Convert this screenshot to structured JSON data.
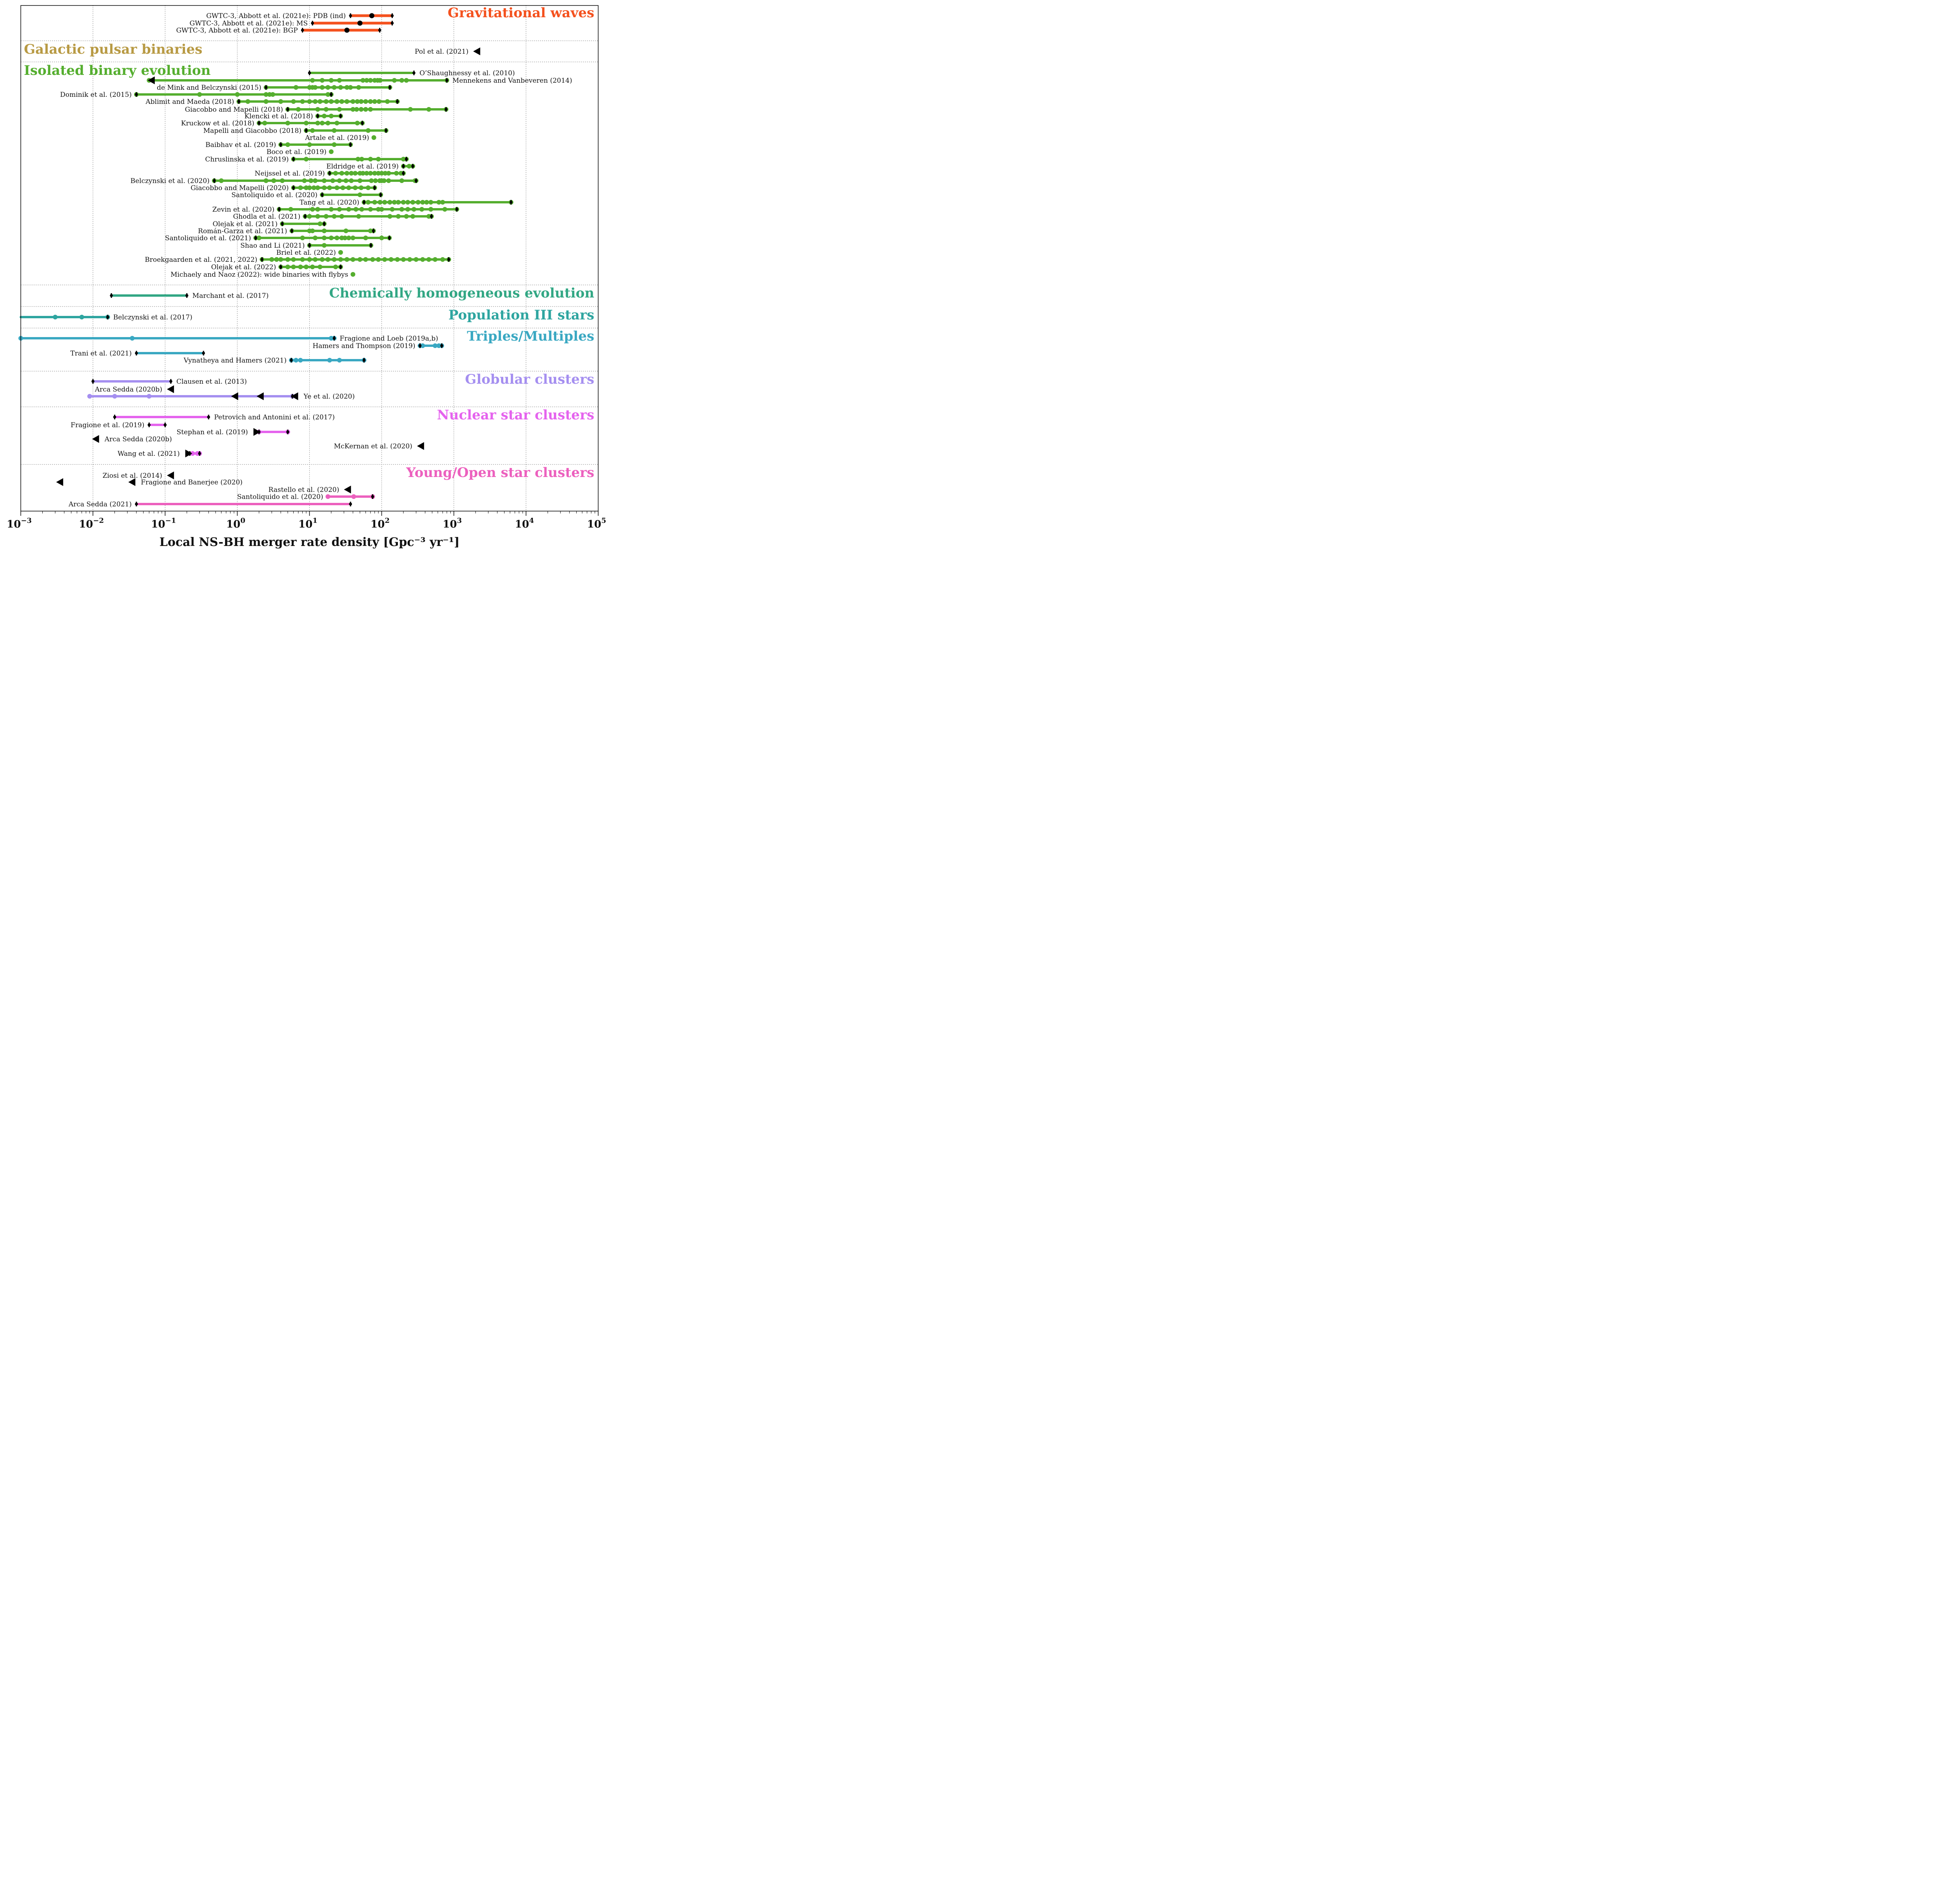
{
  "chart_data": {
    "type": "scatter",
    "xscale": "log",
    "xlim": [
      0.001,
      100000
    ],
    "xlabel": "Local NS-BH merger rate density  [Gpc⁻³ yr⁻¹]",
    "x_ticks": [
      {
        "v": 0.001,
        "base": "10",
        "exp": "−3"
      },
      {
        "v": 0.01,
        "base": "10",
        "exp": "−2"
      },
      {
        "v": 0.1,
        "base": "10",
        "exp": "−1"
      },
      {
        "v": 1,
        "base": "10",
        "exp": "0"
      },
      {
        "v": 10,
        "base": "10",
        "exp": "1"
      },
      {
        "v": 100,
        "base": "10",
        "exp": "2"
      },
      {
        "v": 1000,
        "base": "10",
        "exp": "3"
      },
      {
        "v": 10000,
        "base": "10",
        "exp": "4"
      },
      {
        "v": 100000,
        "base": "10",
        "exp": "5"
      }
    ],
    "grid": true,
    "categories": [
      {
        "name": "Gravitational waves",
        "color": "#f4511e",
        "rows": [
          {
            "label": "GWTC-3, Abbott et al. (2021e): PDB (ind)",
            "label_side": "left",
            "range": [
              37,
              140
            ],
            "points": [
              73
            ],
            "point_color": "#000000",
            "caps": "both"
          },
          {
            "label": "GWTC-3, Abbott et al. (2021e): MS",
            "label_side": "left",
            "range": [
              11,
              140
            ],
            "points": [
              50
            ],
            "point_color": "#000000",
            "caps": "both"
          },
          {
            "label": "GWTC-3, Abbott et al. (2021e): BGP",
            "label_side": "left",
            "range": [
              8,
              94
            ],
            "points": [
              33
            ],
            "point_color": "#000000",
            "caps": "both"
          }
        ]
      },
      {
        "name": "Galactic pulsar binaries",
        "color": "#b89a44",
        "rows": [
          {
            "label": "Pol et al. (2021)",
            "label_side": "left",
            "upper_limit": 2100
          }
        ]
      },
      {
        "name": "Isolated binary evolution",
        "color": "#55ae2f",
        "rows": [
          {
            "label": "O’Shaughnessy et al. (2010)",
            "label_side": "right",
            "range": [
              10,
              280
            ],
            "caps": "both"
          },
          {
            "label": "Mennekens and Vanbeveren (2014)",
            "label_side": "right",
            "range": [
              0.06,
              800
            ],
            "points": [
              0.06,
              11,
              15,
              20,
              26,
              55,
              62,
              70,
              80,
              88,
              95,
              150,
              190,
              220,
              800
            ],
            "lower_limit": 0.065,
            "caps": "right"
          },
          {
            "label": "de Mink and Belczynski (2015)",
            "label_side": "left",
            "range": [
              2.5,
              130
            ],
            "points": [
              2.5,
              6.5,
              10,
              11,
              12,
              15,
              18,
              22,
              27,
              33,
              37,
              48,
              130
            ],
            "caps": "both"
          },
          {
            "label": "Dominik et al. (2015)",
            "label_side": "left",
            "range": [
              0.04,
              20
            ],
            "points": [
              0.04,
              0.3,
              1.0,
              2.5,
              2.8,
              3.1,
              18,
              20
            ],
            "caps": "both"
          },
          {
            "label": "Ablimit and Maeda (2018)",
            "label_side": "left",
            "range": [
              1.05,
              165
            ],
            "points": [
              1.05,
              1.4,
              2.5,
              4,
              6,
              8,
              10,
              12,
              14,
              17,
              20,
              24,
              28,
              33,
              40,
              46,
              52,
              60,
              70,
              80,
              92,
              120,
              165
            ],
            "caps": "both"
          },
          {
            "label": "Giacobbo and Mapelli (2018)",
            "label_side": "left",
            "range": [
              5,
              780
            ],
            "points": [
              5,
              7,
              13,
              17,
              26,
              40,
              45,
              52,
              60,
              70,
              250,
              450,
              780
            ],
            "caps": "both"
          },
          {
            "label": "Klencki et al. (2018)",
            "label_side": "left",
            "range": [
              13,
              27
            ],
            "points": [
              13,
              16,
              20,
              27
            ],
            "caps": "both"
          },
          {
            "label": "Kruckow et al. (2018)",
            "label_side": "left",
            "range": [
              2,
              54
            ],
            "points": [
              2,
              2.4,
              5,
              9,
              13,
              15,
              18,
              24,
              46,
              54
            ],
            "caps": "both"
          },
          {
            "label": "Mapelli and Giacobbo (2018)",
            "label_side": "left",
            "range": [
              9,
              115
            ],
            "points": [
              9,
              11,
              22,
              65,
              115
            ],
            "caps": "both"
          },
          {
            "label": "Artale et al. (2019)",
            "label_side": "left",
            "points": [
              78
            ]
          },
          {
            "label": "Baibhav et al. (2019)",
            "label_side": "left",
            "range": [
              4,
              37
            ],
            "points": [
              4,
              5,
              10,
              22,
              37
            ],
            "caps": "both"
          },
          {
            "label": "Boco et al. (2019)",
            "label_side": "left",
            "points": [
              20
            ]
          },
          {
            "label": "Chruslinska et al. (2019)",
            "label_side": "left",
            "range": [
              6,
              220
            ],
            "points": [
              6,
              9,
              47,
              53,
              70,
              90,
              200,
              220
            ],
            "caps": "both"
          },
          {
            "label": "Eldridge et al. (2019)",
            "label_side": "left",
            "range": [
              200,
              270
            ],
            "points": [
              200,
              240,
              270
            ],
            "caps": "both"
          },
          {
            "label": "Neijssel et al. (2019)",
            "label_side": "left",
            "range": [
              19,
              200
            ],
            "points": [
              19,
              23,
              28,
              33,
              38,
              43,
              50,
              55,
              62,
              70,
              80,
              90,
              100,
              112,
              125,
              160,
              185,
              200
            ],
            "caps": "both"
          },
          {
            "label": "Belczynski et al. (2020)",
            "label_side": "left",
            "range": [
              0.48,
              300
            ],
            "points": [
              0.48,
              0.6,
              2.5,
              3.2,
              4.2,
              8.5,
              10.5,
              12,
              16,
              21,
              26,
              32,
              38,
              50,
              72,
              82,
              94,
              100,
              108,
              125,
              190,
              290,
              300
            ],
            "caps": "both"
          },
          {
            "label": "Giacobbo and Mapelli (2020)",
            "label_side": "left",
            "range": [
              6,
              80
            ],
            "points": [
              6,
              7.5,
              9,
              10,
              11.5,
              13,
              16,
              19,
              24,
              29,
              35,
              43,
              52,
              65,
              80
            ],
            "caps": "both"
          },
          {
            "label": "Santoliquido et al. (2020)",
            "label_side": "left",
            "range": [
              15,
              97
            ],
            "points": [
              15,
              50,
              97
            ],
            "caps": "both"
          },
          {
            "label": "Tang et al. (2020)",
            "label_side": "left",
            "range": [
              57,
              6200
            ],
            "points": [
              57,
              65,
              80,
              95,
              110,
              130,
              150,
              170,
              200,
              230,
              270,
              320,
              370,
              420,
              480,
              620,
              700,
              6200
            ],
            "caps": "both"
          },
          {
            "label": "Zevin et al. (2020)",
            "label_side": "left",
            "range": [
              3.8,
              1100
            ],
            "points": [
              3.8,
              5.5,
              11,
              13,
              20,
              26,
              35,
              44,
              53,
              70,
              90,
              100,
              140,
              190,
              230,
              280,
              360,
              480,
              750,
              1100
            ],
            "caps": "both"
          },
          {
            "label": "Ghodla et al. (2021)",
            "label_side": "left",
            "range": [
              8.7,
              490
            ],
            "points": [
              8.7,
              10,
              13,
              17,
              22,
              28,
              48,
              130,
              170,
              220,
              270,
              450,
              490
            ],
            "caps": "both"
          },
          {
            "label": "Olejak et al. (2021)",
            "label_side": "left",
            "range": [
              4.2,
              16
            ],
            "points": [
              4.2,
              14,
              16
            ],
            "caps": "both"
          },
          {
            "label": "Román-Garza et al. (2021)",
            "label_side": "left",
            "range": [
              5.7,
              77
            ],
            "points": [
              5.7,
              10,
              11,
              16,
              32,
              70,
              77
            ],
            "caps": "both"
          },
          {
            "label": "Santoliquido et al. (2021)",
            "label_side": "left",
            "range": [
              1.8,
              128
            ],
            "points": [
              1.8,
              2,
              8,
              12,
              16,
              20,
              24,
              28,
              31,
              35,
              40,
              60,
              100,
              128
            ],
            "caps": "both"
          },
          {
            "label": "Shao and Li (2021)",
            "label_side": "left",
            "range": [
              10,
              71
            ],
            "points": [
              10,
              16,
              71
            ],
            "caps": "both"
          },
          {
            "label": "Briel et al. (2022)",
            "label_side": "left",
            "points": [
              27
            ]
          },
          {
            "label": "Broekgaarden et al. (2021, 2022)",
            "label_side": "left",
            "range": [
              2.2,
              850
            ],
            "points": [
              2.2,
              3,
              3.5,
              4,
              5,
              6,
              8,
              10,
              12,
              15,
              18,
              22,
              27,
              33,
              40,
              50,
              60,
              75,
              90,
              110,
              135,
              165,
              200,
              245,
              300,
              370,
              450,
              550,
              700,
              850
            ],
            "caps": "both"
          },
          {
            "label": "Olejak et al. (2022)",
            "label_side": "left",
            "range": [
              4,
              27
            ],
            "points": [
              4,
              5,
              6,
              7.5,
              9,
              11,
              14,
              23,
              27
            ],
            "caps": "both"
          },
          {
            "label": "Michaely and Naoz (2022): wide binaries with flybys",
            "label_side": "left",
            "points": [
              40
            ]
          }
        ]
      },
      {
        "name": "Chemically homogeneous evolution",
        "color": "#32a784",
        "rows": [
          {
            "label": "Marchant et al. (2017)",
            "label_side": "right",
            "range": [
              0.018,
              0.2
            ],
            "caps": "both"
          }
        ]
      },
      {
        "name": "Population III stars",
        "color": "#2ea5a0",
        "rows": [
          {
            "label": "Belczynski et al. (2017)",
            "label_side": "right",
            "range": [
              0.001,
              0.016
            ],
            "points": [
              0.003,
              0.007,
              0.016
            ],
            "caps": "right"
          }
        ]
      },
      {
        "name": "Triples/Multiples",
        "color": "#3aa8c2",
        "rows": [
          {
            "label": "Fragione and Loeb (2019a,b)",
            "label_side": "right",
            "range": [
              0.001,
              22
            ],
            "points": [
              0.001,
              0.035,
              20,
              22
            ],
            "caps": "right"
          },
          {
            "label": "Hamers and Thompson (2019)",
            "label_side": "left",
            "range": [
              340,
              680
            ],
            "points": [
              340,
              370,
              550,
              620,
              680
            ],
            "caps": "both"
          },
          {
            "label": "Trani et al. (2021)",
            "label_side": "left",
            "range": [
              0.04,
              0.34
            ],
            "caps": "both"
          },
          {
            "label": "Vynatheya and Hamers (2021)",
            "label_side": "left",
            "range": [
              5.6,
              57
            ],
            "points": [
              5.6,
              6.5,
              7.5,
              19,
              26,
              57
            ],
            "caps": "both"
          }
        ]
      },
      {
        "name": "Globular clusters",
        "color": "#a58ff0",
        "rows": [
          {
            "label": "Clausen et al. (2013)",
            "label_side": "right",
            "range": [
              0.01,
              0.12
            ],
            "caps": "both"
          },
          {
            "label": "Arca Sedda (2020b)",
            "label_side": "left",
            "upper_limit": 0.12
          },
          {
            "label": "Ye et al. (2020)",
            "label_side": "right",
            "range": [
              0.009,
              5.8
            ],
            "points": [
              0.009,
              0.02,
              0.06,
              5.8
            ],
            "upper_limits": [
              0.93,
              2.1,
              6.3
            ],
            "caps": "right"
          }
        ]
      },
      {
        "name": "Nuclear star clusters",
        "color": "#e563ee",
        "rows": [
          {
            "label": "Petrovich and Antonini et al. (2017)",
            "label_side": "right",
            "range": [
              0.02,
              0.4
            ],
            "caps": "both"
          },
          {
            "label": "Fragione et al. (2019)",
            "label_side": "left",
            "range": [
              0.06,
              0.1
            ],
            "caps": "both"
          },
          {
            "label": "Stephan et al. (2019)",
            "label_side": "left",
            "range": [
              2,
              5
            ],
            "points": [
              2,
              5
            ],
            "lower_limit": 1.85,
            "caps": "both"
          },
          {
            "label": "Arca Sedda (2020b)",
            "label_side": "right",
            "upper_limit": 0.011
          },
          {
            "label": "McKernan et al. (2020)",
            "label_side": "left",
            "upper_limit": 350
          },
          {
            "label": "Wang et al. (2021)",
            "label_side": "left",
            "range": [
              0.22,
              0.3
            ],
            "points": [
              0.24,
              0.28,
              0.3
            ],
            "lower_limit": 0.21,
            "caps": "both"
          }
        ]
      },
      {
        "name": "Young/Open star clusters",
        "color": "#ec60be",
        "rows": [
          {
            "label": "Ziosi et al. (2014)",
            "label_side": "left",
            "upper_limit": 0.12
          },
          {
            "label": "Fragione and Banerjee (2020)",
            "label_side": "right",
            "upper_limits": [
              0.0035,
              0.035
            ]
          },
          {
            "label": "Rastello et al. (2020)",
            "label_side": "left",
            "upper_limit": 34
          },
          {
            "label": "Santoliquido et al. (2020)",
            "label_side": "left",
            "range": [
              18,
              75
            ],
            "points": [
              18,
              41,
              75
            ],
            "caps": "right"
          },
          {
            "label": "Arca Sedda (2021)",
            "label_side": "left",
            "range": [
              0.04,
              37
            ],
            "caps": "both"
          }
        ]
      }
    ]
  }
}
